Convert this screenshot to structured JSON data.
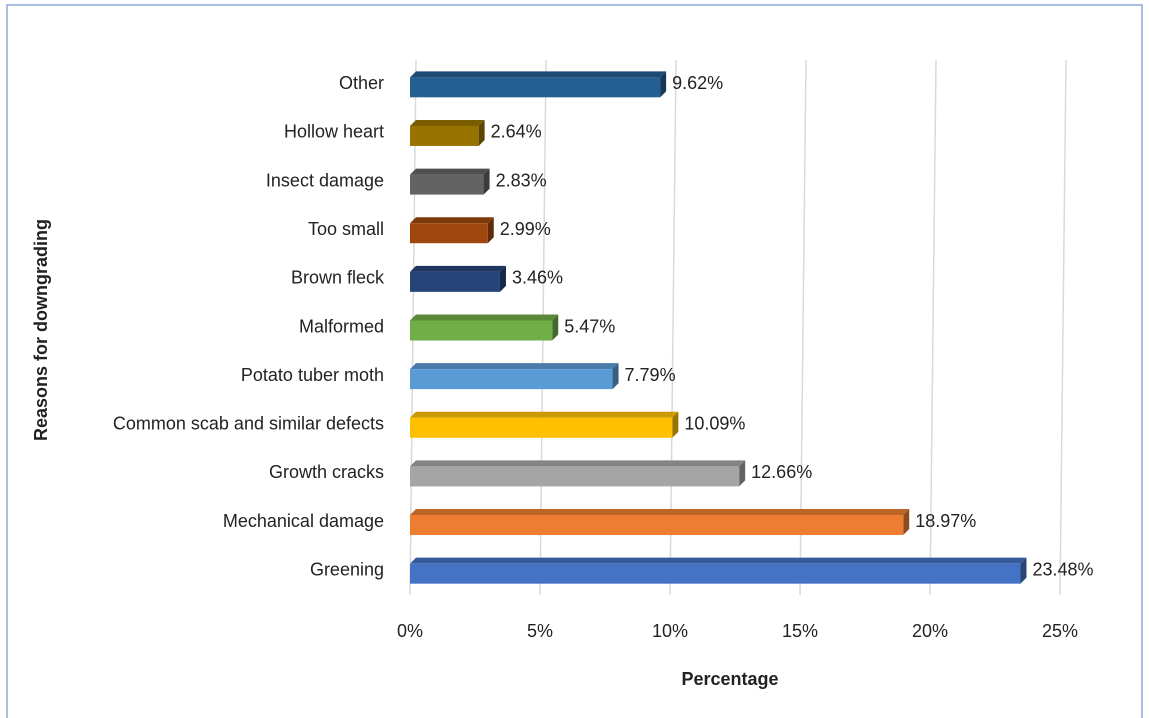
{
  "chart_data": {
    "type": "bar",
    "orientation": "horizontal",
    "x_label": "Percentage",
    "y_label": "Reasons for downgrading",
    "categories": [
      "Greening",
      "Mechanical damage",
      "Growth cracks",
      "Common scab and similar defects",
      "Potato tuber moth",
      "Malformed",
      "Brown fleck",
      "Too small",
      "Insect damage",
      "Hollow heart",
      "Other"
    ],
    "values": [
      23.48,
      18.97,
      12.66,
      10.09,
      7.79,
      5.47,
      3.46,
      2.99,
      2.83,
      2.64,
      9.62
    ],
    "value_labels": [
      "23.48%",
      "18.97%",
      "12.66%",
      "10.09%",
      "7.79%",
      "5.47%",
      "3.46%",
      "2.99%",
      "2.83%",
      "2.64%",
      "9.62%"
    ],
    "colors": [
      "#4472c4",
      "#ed7d31",
      "#a5a5a5",
      "#ffc000",
      "#5b9bd5",
      "#70ad47",
      "#264478",
      "#9e480e",
      "#636363",
      "#997300",
      "#255e91"
    ],
    "xlim": [
      0,
      25
    ],
    "xticks": [
      {
        "value": 0,
        "label": "0%"
      },
      {
        "value": 5,
        "label": "5%"
      },
      {
        "value": 10,
        "label": "10%"
      },
      {
        "value": 15,
        "label": "15%"
      },
      {
        "value": 20,
        "label": "20%"
      },
      {
        "value": 25,
        "label": "25%"
      }
    ],
    "grid": true
  }
}
